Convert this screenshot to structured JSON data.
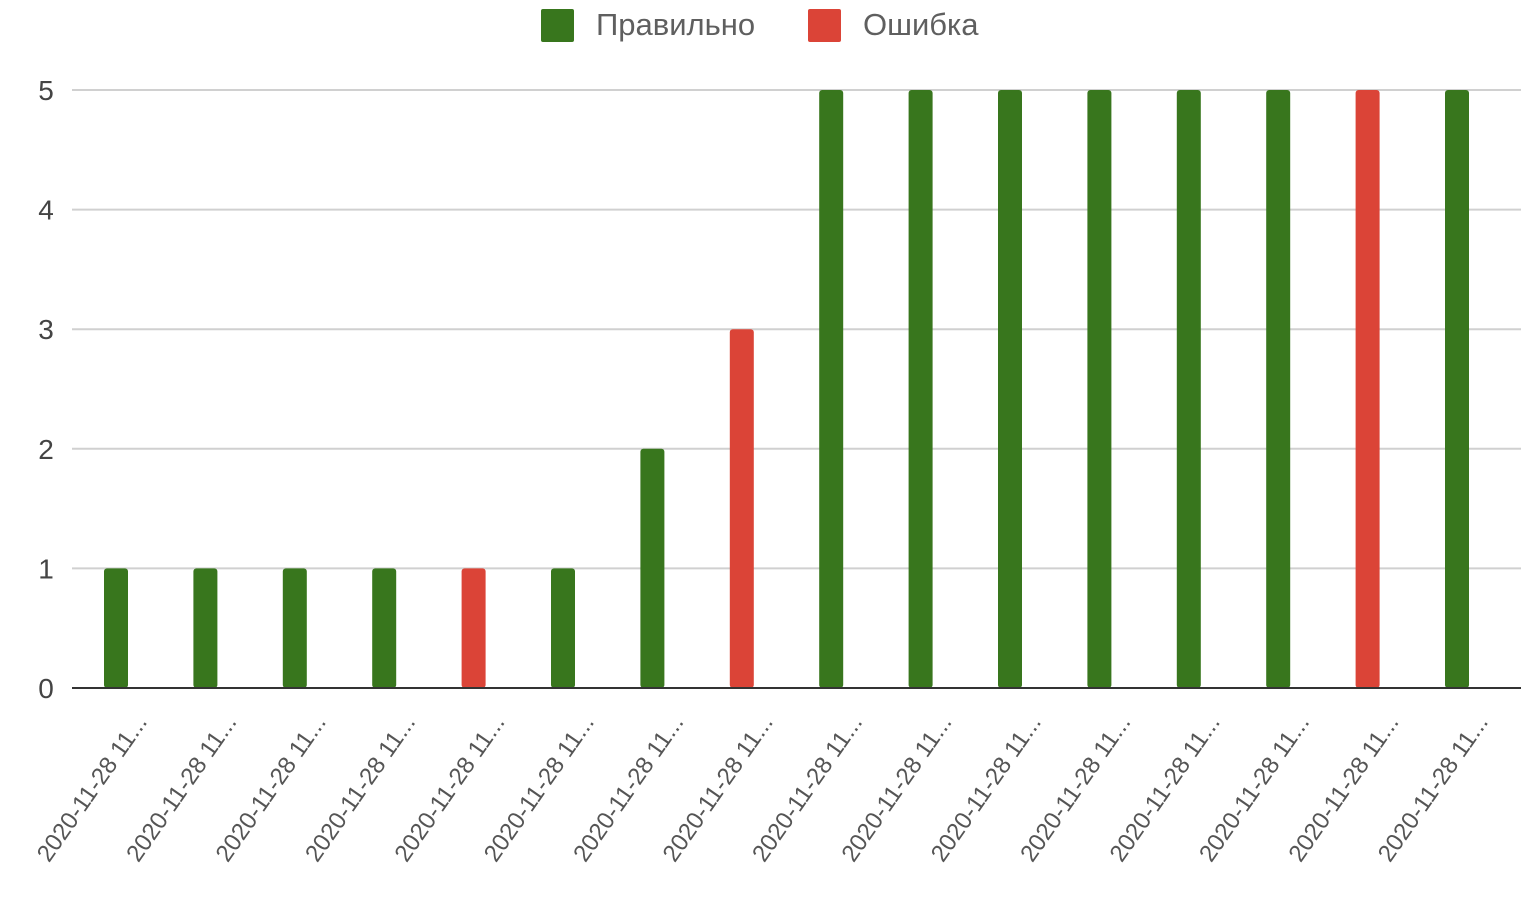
{
  "chart_data": {
    "type": "bar",
    "title": "",
    "xlabel": "",
    "ylabel": "",
    "ylim": [
      0,
      5
    ],
    "yticks": [
      0,
      1,
      2,
      3,
      4,
      5
    ],
    "grid": true,
    "legend_position": "top",
    "categories": [
      "2020-11-28 11...",
      "2020-11-28 11...",
      "2020-11-28 11...",
      "2020-11-28 11...",
      "2020-11-28 11...",
      "2020-11-28 11...",
      "2020-11-28 11...",
      "2020-11-28 11...",
      "2020-11-28 11...",
      "2020-11-28 11...",
      "2020-11-28 11...",
      "2020-11-28 11...",
      "2020-11-28 11...",
      "2020-11-28 11...",
      "2020-11-28 11...",
      "2020-11-28 11..."
    ],
    "series": [
      {
        "name": "Правильно",
        "color": "#38761d",
        "values": [
          1,
          1,
          1,
          1,
          0,
          1,
          2,
          0,
          5,
          5,
          5,
          5,
          5,
          5,
          0,
          5
        ]
      },
      {
        "name": "Ошибка",
        "color": "#db4437",
        "values": [
          0,
          0,
          0,
          0,
          1,
          0,
          0,
          3,
          0,
          0,
          0,
          0,
          0,
          0,
          5,
          0
        ]
      }
    ]
  }
}
